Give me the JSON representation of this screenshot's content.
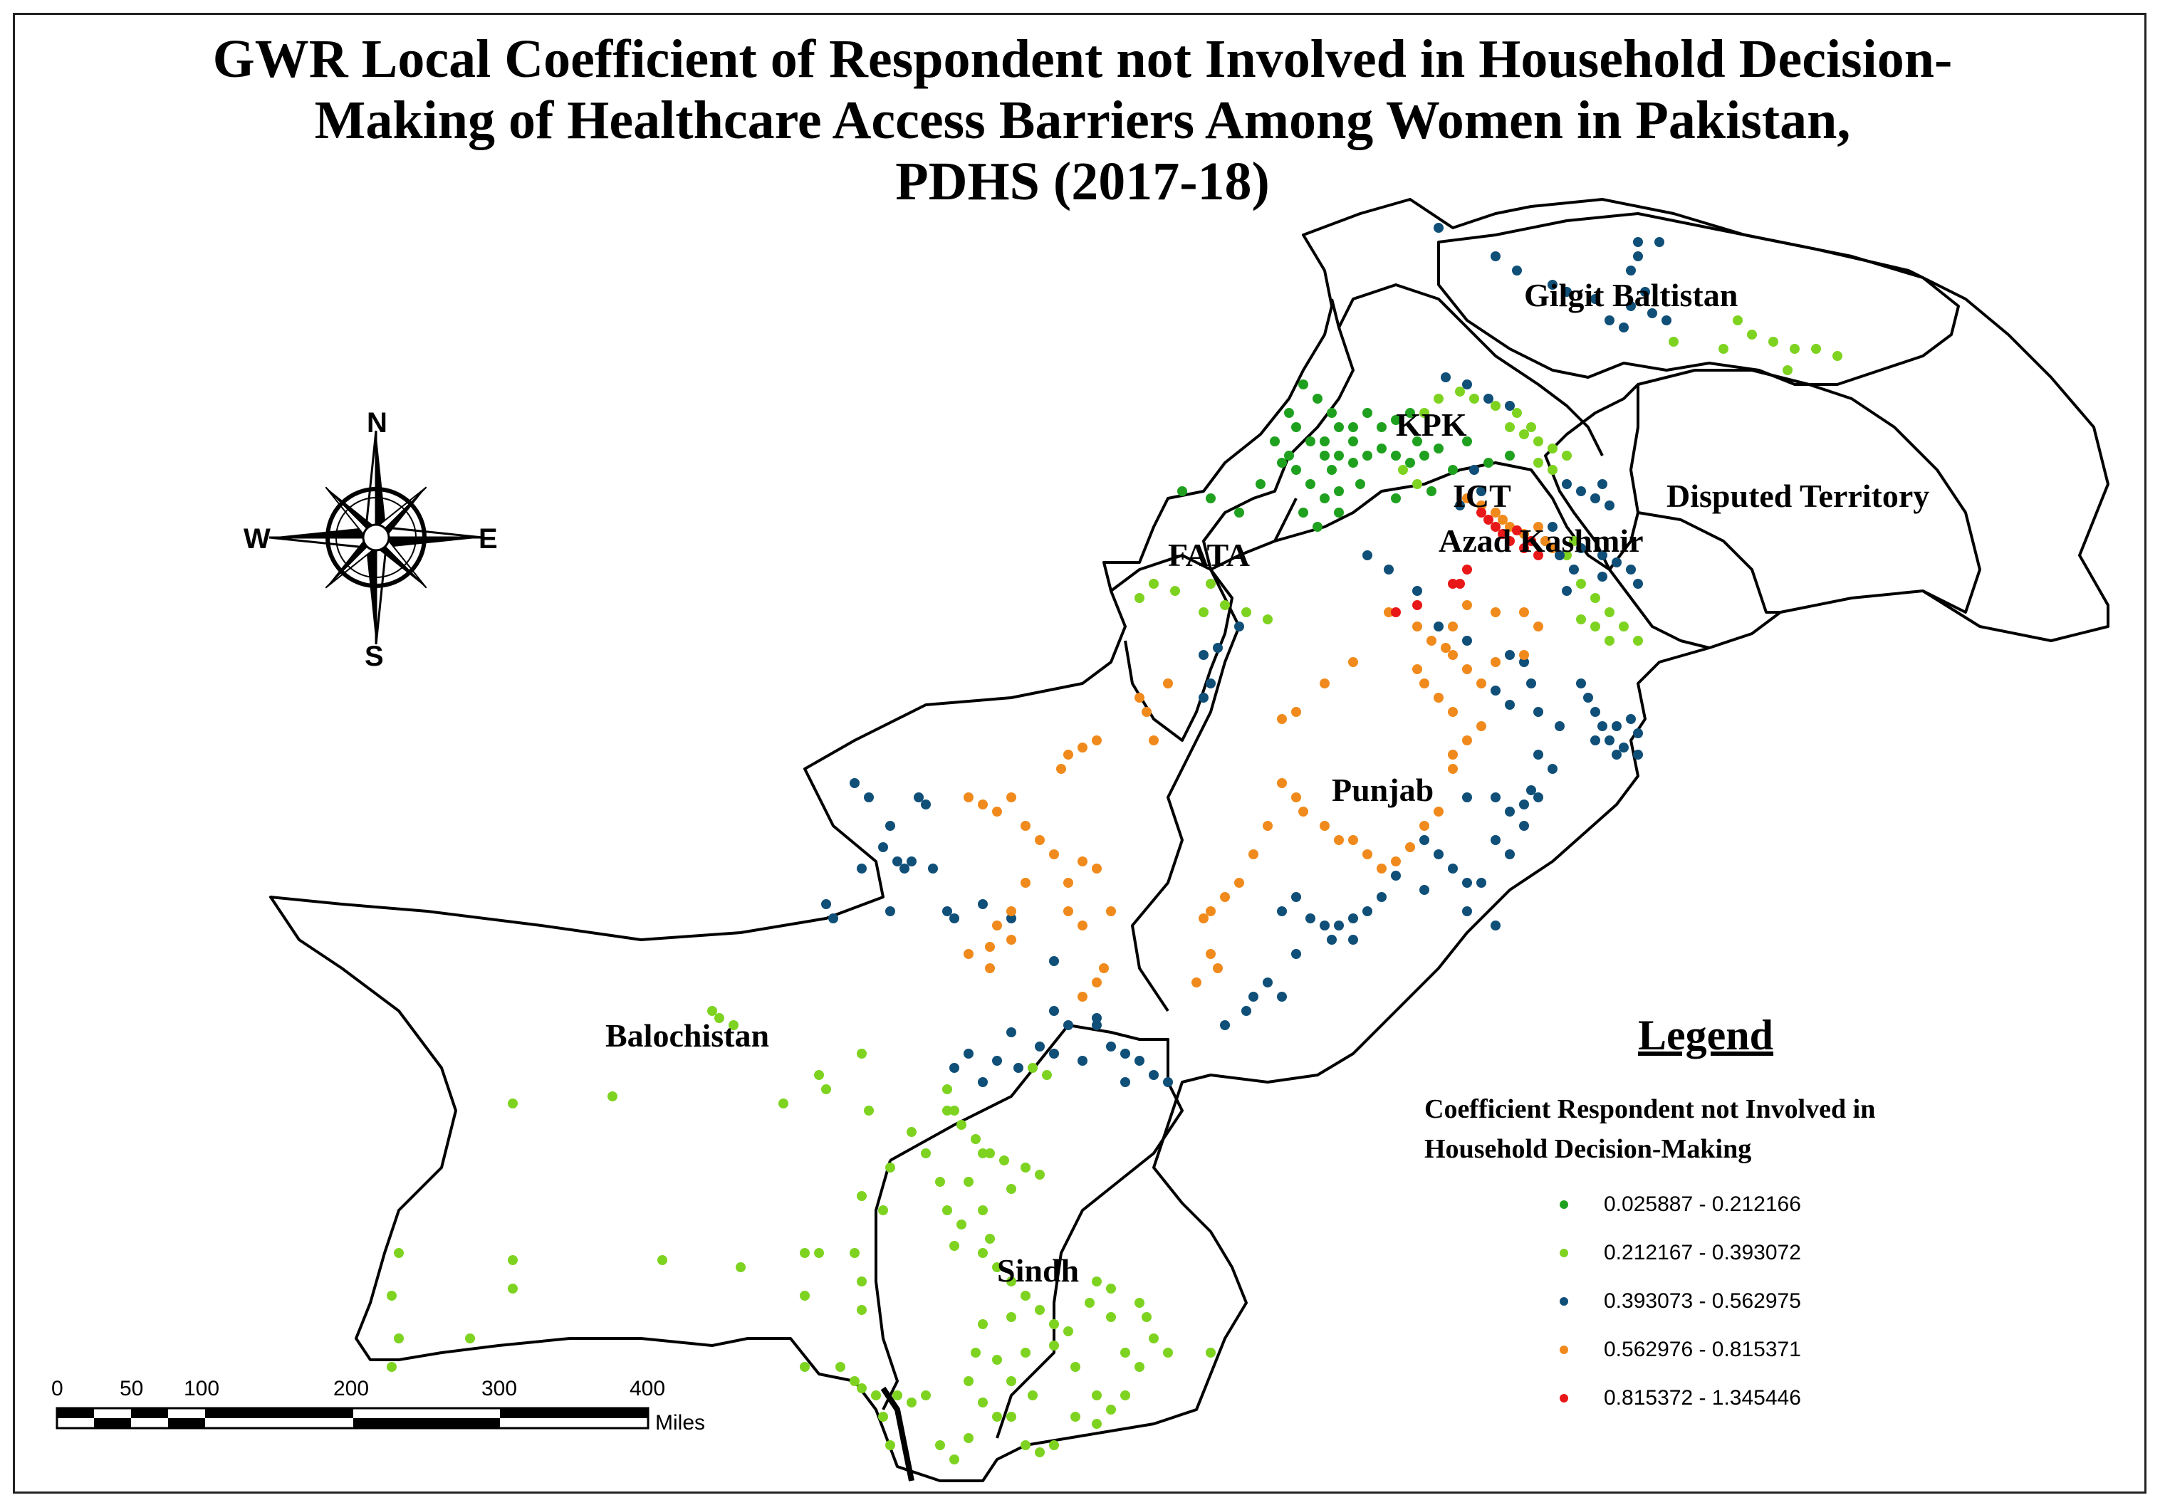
{
  "title": {
    "line1": "GWR Local Coefficient of Respondent not Involved in Household Decision-",
    "line2": "Making of Healthcare Access Barriers Among Women in Pakistan,",
    "line3": "PDHS (2017-18)"
  },
  "regions": {
    "gilgit": "Gilgit Baltistan",
    "kpk": "KPK",
    "fata": "FATA",
    "ict": "ICT",
    "ajk": "Azad Kashmir",
    "disputed": "Disputed Territory",
    "punjab": "Punjab",
    "balochistan": "Balochistan",
    "sindh": "Sindh"
  },
  "compass": {
    "n": "N",
    "s": "S",
    "e": "E",
    "w": "W",
    "icon": "compass-rose"
  },
  "legend": {
    "title": "Legend",
    "subtitle_line1": "Coefficient Respondent not Involved in",
    "subtitle_line2": "Household Decision-Making",
    "classes": [
      {
        "label": "0.025887 - 0.212166",
        "color": "#1fa11f"
      },
      {
        "label": "0.212167 - 0.393072",
        "color": "#7ed321"
      },
      {
        "label": "0.393073 - 0.562975",
        "color": "#0f4f78"
      },
      {
        "label": "0.562976 - 0.815371",
        "color": "#f08a1c"
      },
      {
        "label": "0.815372 - 1.345446",
        "color": "#e81818"
      }
    ]
  },
  "scalebar": {
    "ticks": [
      "0",
      "50",
      "100",
      "200",
      "300",
      "400"
    ],
    "unit": "Miles"
  }
}
